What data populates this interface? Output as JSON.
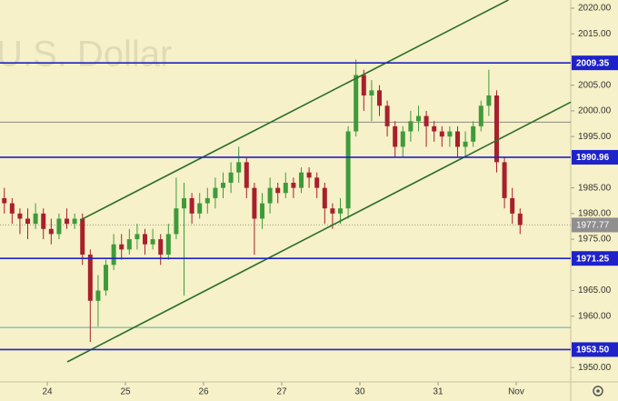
{
  "chart_data": {
    "type": "candlestick",
    "watermark": "U.S. Dollar",
    "background": "#f6f1c8",
    "up_color": "#3f9b3a",
    "down_color": "#a8202c",
    "xlim": [
      -0.605,
      6.698
    ],
    "ylim": [
      1947.2,
      2021.6
    ],
    "xticks": [
      {
        "value": 0,
        "label": "24"
      },
      {
        "value": 1,
        "label": "25"
      },
      {
        "value": 2,
        "label": "26"
      },
      {
        "value": 3,
        "label": "27"
      },
      {
        "value": 4,
        "label": "30"
      },
      {
        "value": 5,
        "label": "31"
      },
      {
        "value": 6,
        "label": "Nov"
      }
    ],
    "yticks": [
      {
        "value": 2020,
        "label": "2020.00"
      },
      {
        "value": 2015,
        "label": "2015.00"
      },
      {
        "value": 2005,
        "label": "2005.00"
      },
      {
        "value": 2000,
        "label": "2000.00"
      },
      {
        "value": 1995,
        "label": "1995.00"
      },
      {
        "value": 1985,
        "label": "1985.00"
      },
      {
        "value": 1980,
        "label": "1980.00"
      },
      {
        "value": 1975,
        "label": "1975.00"
      },
      {
        "value": 1965,
        "label": "1965.00"
      },
      {
        "value": 1960,
        "label": "1960.00"
      },
      {
        "value": 1950,
        "label": "1950.00"
      }
    ],
    "x": [
      -0.55,
      -0.45,
      -0.35,
      -0.25,
      -0.15,
      -0.05,
      0.05,
      0.15,
      0.25,
      0.35,
      0.45,
      0.55,
      0.65,
      0.75,
      0.85,
      0.95,
      1.05,
      1.15,
      1.25,
      1.35,
      1.45,
      1.55,
      1.65,
      1.75,
      1.85,
      1.95,
      2.05,
      2.15,
      2.25,
      2.35,
      2.45,
      2.55,
      2.65,
      2.75,
      2.85,
      2.95,
      3.05,
      3.15,
      3.25,
      3.35,
      3.45,
      3.55,
      3.65,
      3.75,
      3.85,
      3.95,
      4.05,
      4.15,
      4.25,
      4.35,
      4.45,
      4.55,
      4.65,
      4.75,
      4.85,
      4.95,
      5.05,
      5.15,
      5.25,
      5.35,
      5.45,
      5.55,
      5.65,
      5.75,
      5.85,
      5.95,
      6.05
    ],
    "open": [
      1983,
      1982,
      1980,
      1979,
      1978,
      1980,
      1977,
      1976,
      1979,
      1978,
      1979,
      1972,
      1963,
      1965,
      1970,
      1974,
      1973,
      1975,
      1976,
      1974,
      1975,
      1972,
      1976,
      1981,
      1983,
      1980,
      1982,
      1983,
      1985,
      1986,
      1988,
      1990,
      1985,
      1979,
      1982,
      1985,
      1984,
      1986,
      1985,
      1988,
      1987,
      1985,
      1981,
      1980,
      1981,
      1996,
      2007,
      2003,
      2004,
      2001,
      1997,
      1993,
      1996,
      1998,
      1999,
      1997,
      1996,
      1995,
      1996,
      1993,
      1994,
      1997,
      2001,
      2003,
      1990,
      1983,
      1980
    ],
    "high": [
      1985,
      1983,
      1981,
      1981,
      1982,
      1981,
      1979,
      1980,
      1981,
      1980,
      1980,
      1973,
      1968,
      1971,
      1976,
      1976,
      1977,
      1978,
      1977,
      1977,
      1976,
      1978,
      1987,
      1986,
      1984,
      1984,
      1985,
      1987,
      1988,
      1990,
      1993,
      1991,
      1986,
      1984,
      1987,
      1986,
      1988,
      1987,
      1989,
      1989,
      1988,
      1986,
      1982,
      1983,
      1997,
      2010,
      2008,
      2006,
      2005,
      2002,
      1998,
      1997,
      2000,
      2001,
      2000,
      1998,
      1997,
      1997,
      1997,
      1996,
      1998,
      2002,
      2008,
      2004,
      1991,
      1985,
      1981
    ],
    "low": [
      1980,
      1978,
      1976,
      1975,
      1977,
      1975,
      1974,
      1975,
      1977,
      1977,
      1970,
      1955,
      1958,
      1964,
      1969,
      1971,
      1972,
      1973,
      1972,
      1973,
      1970,
      1971,
      1975,
      1964,
      1978,
      1979,
      1980,
      1981,
      1983,
      1984,
      1986,
      1983,
      1972,
      1977,
      1980,
      1982,
      1983,
      1983,
      1984,
      1985,
      1983,
      1978,
      1977,
      1978,
      1979,
      1995,
      2000,
      1998,
      1999,
      1995,
      1991,
      1991,
      1994,
      1996,
      1993,
      1994,
      1993,
      1993,
      1991,
      1991,
      1993,
      1996,
      1999,
      1988,
      1981,
      1978,
      1976
    ],
    "close": [
      1982,
      1980,
      1979,
      1978,
      1980,
      1977,
      1976,
      1979,
      1978,
      1979,
      1972,
      1963,
      1965,
      1970,
      1974,
      1973,
      1975,
      1976,
      1974,
      1975,
      1972,
      1976,
      1981,
      1983,
      1980,
      1982,
      1983,
      1985,
      1986,
      1988,
      1990,
      1985,
      1979,
      1982,
      1985,
      1984,
      1986,
      1985,
      1988,
      1987,
      1985,
      1981,
      1980,
      1981,
      1996,
      2007,
      2003,
      2004,
      2001,
      1997,
      1993,
      1996,
      1998,
      1999,
      1997,
      1996,
      1995,
      1996,
      1993,
      1994,
      1997,
      2001,
      2003,
      1990,
      1983,
      1980,
      1977.77
    ],
    "levels": [
      2009.35,
      1990.96,
      1971.25,
      {
        "value": 1953.5,
        "label": "1953.50"
      }
    ],
    "level_color": "#1f22c9",
    "last_price": 1977.77,
    "reference_lines": [
      {
        "value": 1997.8,
        "color": "#8a8a80"
      },
      {
        "value": 1957.8,
        "color": "#5fa8a8"
      }
    ],
    "trendlines": [
      {
        "color": "#2d6e2a",
        "x": [
          0.42,
          5.9
        ],
        "y": [
          1978.7,
          2021.6
        ]
      },
      {
        "color": "#2d6e2a",
        "x": [
          0.256,
          6.698
        ],
        "y": [
          1951.1,
          2001.7
        ]
      }
    ]
  }
}
